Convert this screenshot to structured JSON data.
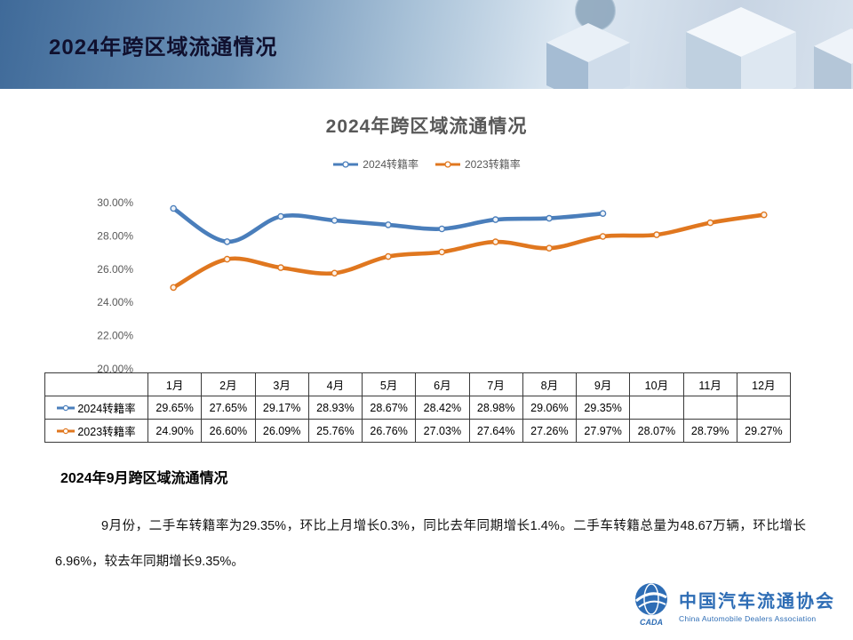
{
  "slide": {
    "header_title": "2024年跨区域流通情况",
    "section_heading": "2024年9月跨区域流通情况",
    "paragraph": "9月份，二手车转籍率为29.35%，环比上月增长0.3%，同比去年同期增长1.4%。二手车转籍总量为48.67万辆，环比增长6.96%，较去年同期增长9.35%。"
  },
  "chart_data": {
    "type": "line",
    "title": "2024年跨区域流通情况",
    "categories": [
      "1月",
      "2月",
      "3月",
      "4月",
      "5月",
      "6月",
      "7月",
      "8月",
      "9月",
      "10月",
      "11月",
      "12月"
    ],
    "series": [
      {
        "name": "2024转籍率",
        "color": "#4a7ebb",
        "values": [
          29.65,
          27.65,
          29.17,
          28.93,
          28.67,
          28.42,
          28.98,
          29.06,
          29.35,
          null,
          null,
          null
        ]
      },
      {
        "name": "2023转籍率",
        "color": "#e0771f",
        "values": [
          24.9,
          26.6,
          26.09,
          25.76,
          26.76,
          27.03,
          27.64,
          27.26,
          27.97,
          28.07,
          28.79,
          29.27
        ]
      }
    ],
    "ylabel": "",
    "xlabel": "",
    "ylim": [
      20,
      30
    ],
    "yticks": [
      "30.00%",
      "28.00%",
      "26.00%",
      "24.00%",
      "22.00%",
      "20.00%"
    ],
    "grid": false,
    "legend_position": "top"
  },
  "table": {
    "corner_label": "",
    "rows": [
      {
        "label": "2024转籍率",
        "values": [
          "29.65%",
          "27.65%",
          "29.17%",
          "28.93%",
          "28.67%",
          "28.42%",
          "28.98%",
          "29.06%",
          "29.35%",
          "",
          "",
          ""
        ]
      },
      {
        "label": "2023转籍率",
        "values": [
          "24.90%",
          "26.60%",
          "26.09%",
          "25.76%",
          "26.76%",
          "27.03%",
          "27.64%",
          "27.26%",
          "27.97%",
          "28.07%",
          "28.79%",
          "29.27%"
        ]
      }
    ]
  },
  "footer": {
    "org_cn": "中国汽车流通协会",
    "org_en": "China Automobile Dealers Association",
    "logo_text": "CADA"
  }
}
